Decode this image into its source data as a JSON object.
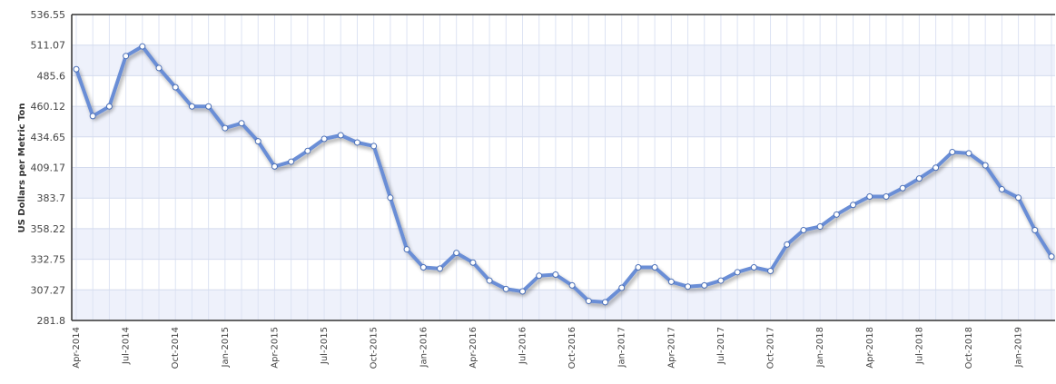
{
  "chart_data": {
    "type": "line",
    "title": "",
    "xlabel": "",
    "ylabel": "US Dollars per Metric Ton",
    "ylim": [
      281.8,
      536.55
    ],
    "yticks": [
      "536.55",
      "511.07",
      "485.6",
      "460.12",
      "434.65",
      "409.17",
      "383.7",
      "358.22",
      "332.75",
      "307.27",
      "281.8"
    ],
    "xticks": [
      {
        "label": "Apr-2014",
        "index": 0
      },
      {
        "label": "Jul-2014",
        "index": 3
      },
      {
        "label": "Oct-2014",
        "index": 6
      },
      {
        "label": "Jan-2015",
        "index": 9
      },
      {
        "label": "Apr-2015",
        "index": 12
      },
      {
        "label": "Jul-2015",
        "index": 15
      },
      {
        "label": "Oct-2015",
        "index": 18
      },
      {
        "label": "Jan-2016",
        "index": 21
      },
      {
        "label": "Apr-2016",
        "index": 24
      },
      {
        "label": "Jul-2016",
        "index": 27
      },
      {
        "label": "Oct-2016",
        "index": 30
      },
      {
        "label": "Jan-2017",
        "index": 33
      },
      {
        "label": "Apr-2017",
        "index": 36
      },
      {
        "label": "Jul-2017",
        "index": 39
      },
      {
        "label": "Oct-2017",
        "index": 42
      },
      {
        "label": "Jan-2018",
        "index": 45
      },
      {
        "label": "Apr-2018",
        "index": 48
      },
      {
        "label": "Jul-2018",
        "index": 51
      },
      {
        "label": "Oct-2018",
        "index": 54
      },
      {
        "label": "Jan-2019",
        "index": 57
      }
    ],
    "grid": true,
    "line_color": "#6a8ed6",
    "band_color": "#eef1fb",
    "series": [
      {
        "name": "",
        "x": [
          "Apr-2014",
          "May-2014",
          "Jun-2014",
          "Jul-2014",
          "Aug-2014",
          "Sep-2014",
          "Oct-2014",
          "Nov-2014",
          "Dec-2014",
          "Jan-2015",
          "Feb-2015",
          "Mar-2015",
          "Apr-2015",
          "May-2015",
          "Jun-2015",
          "Jul-2015",
          "Aug-2015",
          "Sep-2015",
          "Oct-2015",
          "Nov-2015",
          "Dec-2015",
          "Jan-2016",
          "Feb-2016",
          "Mar-2016",
          "Apr-2016",
          "May-2016",
          "Jun-2016",
          "Jul-2016",
          "Aug-2016",
          "Sep-2016",
          "Oct-2016",
          "Nov-2016",
          "Dec-2016",
          "Jan-2017",
          "Feb-2017",
          "Mar-2017",
          "Apr-2017",
          "May-2017",
          "Jun-2017",
          "Jul-2017",
          "Aug-2017",
          "Sep-2017",
          "Oct-2017",
          "Nov-2017",
          "Dec-2017",
          "Jan-2018",
          "Feb-2018",
          "Mar-2018",
          "Apr-2018",
          "May-2018",
          "Jun-2018",
          "Jul-2018",
          "Aug-2018",
          "Sep-2018",
          "Oct-2018",
          "Nov-2018",
          "Dec-2018",
          "Jan-2019",
          "Feb-2019",
          "Mar-2019"
        ],
        "values": [
          491,
          452,
          460,
          502,
          510,
          492,
          476,
          460,
          460,
          442,
          446,
          431,
          410,
          414,
          423,
          433,
          436,
          430,
          427,
          384,
          341,
          326,
          325,
          338,
          330,
          315,
          308,
          306,
          319,
          320,
          311,
          298,
          297,
          309,
          326,
          326,
          314,
          310,
          311,
          315,
          322,
          326,
          323,
          345,
          357,
          360,
          370,
          378,
          385,
          385,
          392,
          400,
          409,
          422,
          421,
          411,
          391,
          384,
          357,
          335
        ]
      }
    ]
  }
}
